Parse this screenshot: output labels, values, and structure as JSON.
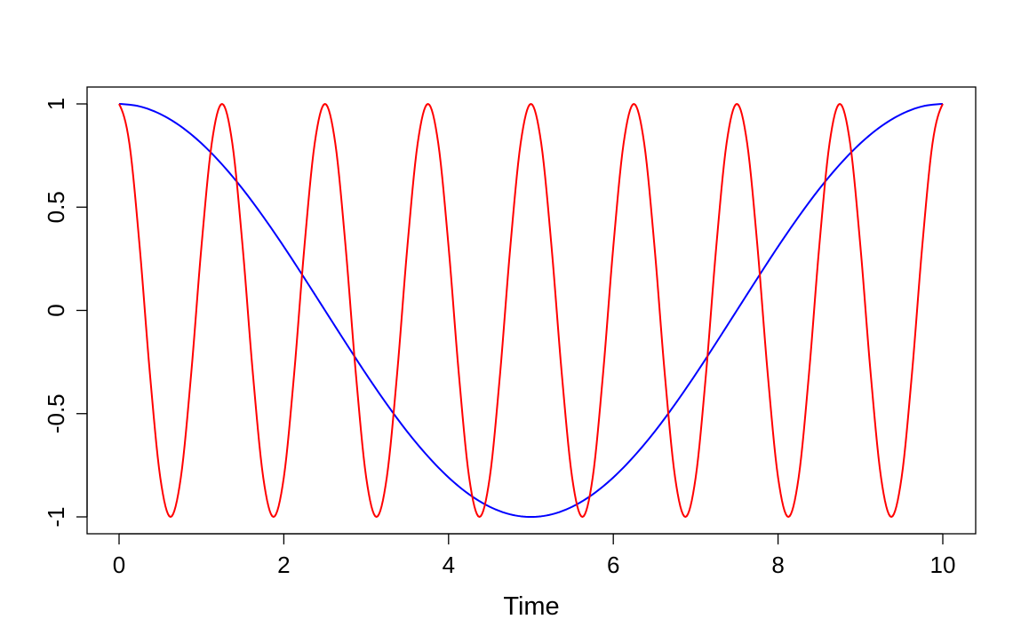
{
  "chart_data": {
    "type": "line",
    "title": "",
    "xlabel": "Time",
    "ylabel": "",
    "xlim": [
      0,
      10
    ],
    "ylim": [
      -1,
      1
    ],
    "x_ticks": [
      "0",
      "2",
      "4",
      "6",
      "8",
      "10"
    ],
    "y_ticks": [
      "-1",
      "-0.5",
      "0",
      "0.5",
      "1"
    ],
    "grid": false,
    "legend": "none",
    "series": [
      {
        "color": "#0000ff",
        "x": [
          0,
          0.25,
          0.5,
          0.75,
          1,
          1.25,
          1.5,
          1.75,
          2,
          2.25,
          2.5,
          2.75,
          3,
          3.25,
          3.5,
          3.75,
          4,
          4.25,
          4.5,
          4.75,
          5,
          5.25,
          5.5,
          5.75,
          6,
          6.25,
          6.5,
          6.75,
          7,
          7.25,
          7.5,
          7.75,
          8,
          8.25,
          8.5,
          8.75,
          9,
          9.25,
          9.5,
          9.75,
          10
        ],
        "y": [
          1,
          0.988,
          0.951,
          0.891,
          0.809,
          0.707,
          0.588,
          0.454,
          0.309,
          0.156,
          0,
          -0.156,
          -0.309,
          -0.454,
          -0.588,
          -0.707,
          -0.809,
          -0.891,
          -0.951,
          -0.988,
          -1,
          -0.988,
          -0.951,
          -0.891,
          -0.809,
          -0.707,
          -0.588,
          -0.454,
          -0.309,
          -0.156,
          0,
          0.156,
          0.309,
          0.454,
          0.588,
          0.707,
          0.809,
          0.891,
          0.951,
          0.988,
          1
        ]
      },
      {
        "color": "#ff0000",
        "x": [
          0,
          0.125,
          0.25,
          0.375,
          0.5,
          0.625,
          0.75,
          0.875,
          1,
          1.125,
          1.25,
          1.375,
          1.5,
          1.625,
          1.75,
          1.875,
          2,
          2.125,
          2.25,
          2.375,
          2.5,
          2.625,
          2.75,
          2.875,
          3,
          3.125,
          3.25,
          3.375,
          3.5,
          3.625,
          3.75,
          3.875,
          4,
          4.125,
          4.25,
          4.375,
          4.5,
          4.625,
          4.75,
          4.875,
          5,
          5.125,
          5.25,
          5.375,
          5.5,
          5.625,
          5.75,
          5.875,
          6,
          6.125,
          6.25,
          6.375,
          6.5,
          6.625,
          6.75,
          6.875,
          7,
          7.125,
          7.25,
          7.375,
          7.5,
          7.625,
          7.75,
          7.875,
          8,
          8.125,
          8.25,
          8.375,
          8.5,
          8.625,
          8.75,
          8.875,
          9,
          9.125,
          9.25,
          9.375,
          9.5,
          9.625,
          9.75,
          9.875,
          10
        ],
        "y": [
          1,
          0.809,
          0.309,
          -0.309,
          -0.809,
          -1,
          -0.809,
          -0.309,
          0.309,
          0.809,
          1,
          0.809,
          0.309,
          -0.309,
          -0.809,
          -1,
          -0.809,
          -0.309,
          0.309,
          0.809,
          1,
          0.809,
          0.309,
          -0.309,
          -0.809,
          -1,
          -0.809,
          -0.309,
          0.309,
          0.809,
          1,
          0.809,
          0.309,
          -0.309,
          -0.809,
          -1,
          -0.809,
          -0.309,
          0.309,
          0.809,
          1,
          0.809,
          0.309,
          -0.309,
          -0.809,
          -1,
          -0.809,
          -0.309,
          0.309,
          0.809,
          1,
          0.809,
          0.309,
          -0.309,
          -0.809,
          -1,
          -0.809,
          -0.309,
          0.309,
          0.809,
          1,
          0.809,
          0.309,
          -0.309,
          -0.809,
          -1,
          -0.809,
          -0.309,
          0.309,
          0.809,
          1,
          0.809,
          0.309,
          -0.309,
          -0.809,
          -1,
          -0.809,
          -0.309,
          0.309,
          0.809,
          1
        ]
      }
    ]
  }
}
